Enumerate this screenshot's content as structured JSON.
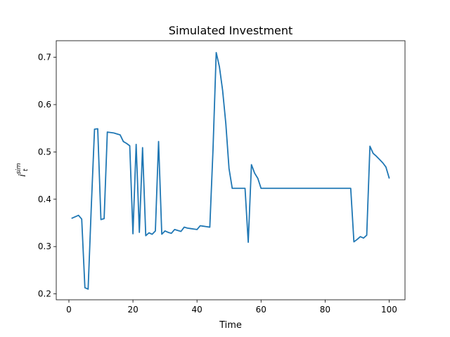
{
  "chart_data": {
    "type": "line",
    "title": "Simulated Investment",
    "xlabel": "Time",
    "ylabel": "i_t^{sim}",
    "ylabel_parts": {
      "base": "i",
      "sub": "t",
      "sup": "sim"
    },
    "xlim": [
      -3.95,
      104.95
    ],
    "ylim": [
      0.1875,
      0.735
    ],
    "xticks": [
      0,
      20,
      40,
      60,
      80,
      100
    ],
    "yticks": [
      0.2,
      0.3,
      0.4,
      0.5,
      0.6,
      0.7
    ],
    "xtick_labels": [
      "0",
      "20",
      "40",
      "60",
      "80",
      "100"
    ],
    "ytick_labels": [
      "0.2",
      "0.3",
      "0.4",
      "0.5",
      "0.6",
      "0.7"
    ],
    "grid": false,
    "legend": "none",
    "line_color": "#1f77b4",
    "series": [
      {
        "x": [
          1,
          2,
          3,
          4,
          5,
          6,
          7,
          8,
          9,
          10,
          11,
          12,
          13,
          14,
          15,
          16,
          17,
          18,
          19,
          20,
          21,
          22,
          23,
          24,
          25,
          26,
          27,
          28,
          29,
          30,
          31,
          32,
          33,
          34,
          35,
          36,
          37,
          38,
          39,
          40,
          41,
          42,
          43,
          44,
          45,
          46,
          47,
          48,
          49,
          50,
          51,
          52,
          53,
          54,
          55,
          56,
          57,
          58,
          59,
          60,
          61,
          62,
          63,
          64,
          65,
          66,
          67,
          68,
          69,
          70,
          71,
          72,
          73,
          74,
          75,
          76,
          77,
          78,
          79,
          80,
          81,
          82,
          83,
          84,
          85,
          86,
          87,
          88,
          89,
          90,
          91,
          92,
          93,
          94,
          95,
          96,
          97,
          98,
          99,
          100
        ],
        "values": [
          0.36,
          0.363,
          0.366,
          0.358,
          0.213,
          0.21,
          0.385,
          0.548,
          0.549,
          0.357,
          0.359,
          0.542,
          0.541,
          0.54,
          0.538,
          0.536,
          0.522,
          0.518,
          0.513,
          0.327,
          0.516,
          0.33,
          0.509,
          0.323,
          0.329,
          0.326,
          0.333,
          0.522,
          0.326,
          0.333,
          0.33,
          0.328,
          0.336,
          0.334,
          0.332,
          0.341,
          0.339,
          0.338,
          0.337,
          0.336,
          0.344,
          0.343,
          0.342,
          0.341,
          0.505,
          0.71,
          0.68,
          0.63,
          0.56,
          0.465,
          0.423,
          0.423,
          0.423,
          0.423,
          0.423,
          0.309,
          0.473,
          0.455,
          0.444,
          0.423,
          0.423,
          0.423,
          0.423,
          0.423,
          0.423,
          0.423,
          0.423,
          0.423,
          0.423,
          0.423,
          0.423,
          0.423,
          0.423,
          0.423,
          0.423,
          0.423,
          0.423,
          0.423,
          0.423,
          0.423,
          0.423,
          0.423,
          0.423,
          0.423,
          0.423,
          0.423,
          0.423,
          0.423,
          0.31,
          0.315,
          0.321,
          0.318,
          0.324,
          0.512,
          0.497,
          0.491,
          0.484,
          0.477,
          0.468,
          0.445
        ]
      }
    ]
  }
}
